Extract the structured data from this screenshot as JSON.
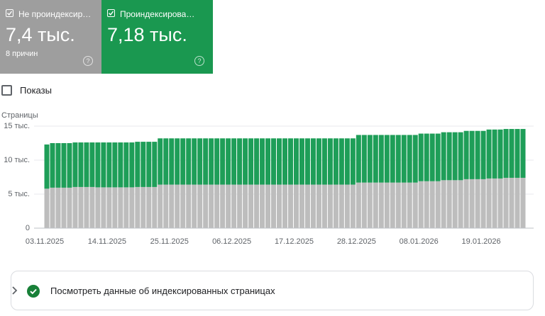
{
  "cards": [
    {
      "value": "7,4 тыс.",
      "note": "8 причин"
    },
    {
      "value": "7,18 тыс."
    }
  ],
  "toggle": "Показы",
  "link": "Посмотреть данные об индексированных страницах",
  "chart_data": {
    "type": "stacked_bar",
    "y_label": "Страницы",
    "categories": [
      "03.11.2025",
      null,
      null,
      null,
      null,
      null,
      null,
      null,
      null,
      null,
      null,
      "14.11.2025",
      null,
      null,
      null,
      null,
      null,
      null,
      null,
      null,
      null,
      null,
      "25.11.2025",
      null,
      null,
      null,
      null,
      null,
      null,
      null,
      null,
      null,
      null,
      "06.12.2025",
      null,
      null,
      null,
      null,
      null,
      null,
      null,
      null,
      null,
      null,
      "17.12.2025",
      null,
      null,
      null,
      null,
      null,
      null,
      null,
      null,
      null,
      null,
      "28.12.2025",
      null,
      null,
      null,
      null,
      null,
      null,
      null,
      null,
      null,
      null,
      "08.01.2026",
      null,
      null,
      null,
      null,
      null,
      null,
      null,
      null,
      null,
      null,
      "19.01.2026",
      null,
      null,
      null,
      null,
      null,
      null,
      null
    ],
    "series": [
      {
        "name": "Не проиндексир…",
        "color": "#bdbdbd",
        "values": [
          5800,
          5950,
          5950,
          5950,
          5950,
          6050,
          6050,
          6050,
          6050,
          6000,
          6000,
          6000,
          6000,
          6000,
          6000,
          6000,
          6050,
          6050,
          6050,
          6050,
          6400,
          6400,
          6400,
          6400,
          6400,
          6400,
          6400,
          6400,
          6400,
          6400,
          6400,
          6400,
          6400,
          6400,
          6400,
          6400,
          6400,
          6400,
          6400,
          6400,
          6400,
          6400,
          6400,
          6400,
          6400,
          6400,
          6400,
          6400,
          6400,
          6400,
          6400,
          6400,
          6400,
          6400,
          6400,
          6700,
          6700,
          6700,
          6700,
          6700,
          6700,
          6700,
          6700,
          6700,
          6700,
          6700,
          6900,
          6900,
          6900,
          6900,
          7050,
          7050,
          7050,
          7050,
          7200,
          7200,
          7200,
          7200,
          7300,
          7300,
          7300,
          7400,
          7400,
          7400,
          7400
        ]
      },
      {
        "name": "Проиндексирова…",
        "color": "#1e9e58",
        "values": [
          6500,
          6550,
          6550,
          6550,
          6550,
          6550,
          6550,
          6550,
          6550,
          6600,
          6600,
          6600,
          6600,
          6600,
          6600,
          6600,
          6650,
          6650,
          6650,
          6650,
          6800,
          6800,
          6800,
          6800,
          6800,
          6800,
          6800,
          6800,
          6800,
          6800,
          6800,
          6800,
          6800,
          6800,
          6800,
          6800,
          6800,
          6800,
          6800,
          6800,
          6800,
          6800,
          6800,
          6800,
          6800,
          6800,
          6800,
          6800,
          6800,
          6800,
          6800,
          6800,
          6800,
          6800,
          6800,
          7000,
          7000,
          7000,
          7000,
          7000,
          7000,
          7000,
          7000,
          7000,
          7000,
          7000,
          7000,
          7000,
          7000,
          7000,
          7050,
          7050,
          7050,
          7050,
          7100,
          7100,
          7100,
          7100,
          7200,
          7200,
          7200,
          7180,
          7180,
          7180,
          7180
        ]
      }
    ],
    "ylim": [
      0,
      15000
    ],
    "yticks": [
      0,
      {
        "value": 5000,
        "label": "5 тыс."
      },
      {
        "value": 10000,
        "label": "10 тыс."
      },
      {
        "value": 15000,
        "label": "15 тыс."
      }
    ],
    "grid": true
  }
}
